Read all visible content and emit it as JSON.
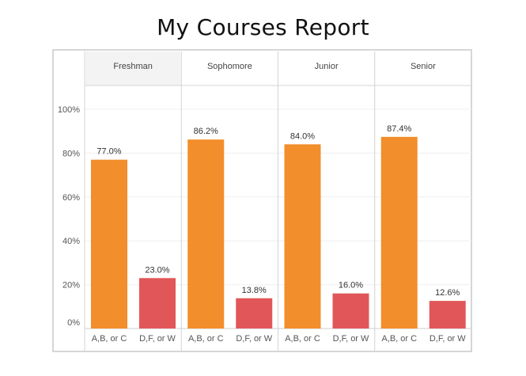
{
  "chart_data": {
    "type": "bar",
    "title": "My Courses Report",
    "panels": [
      {
        "name": "Freshman",
        "values": [
          77.0,
          23.0
        ],
        "labels": [
          "77.0%",
          "23.0%"
        ]
      },
      {
        "name": "Sophomore",
        "values": [
          86.2,
          13.8
        ],
        "labels": [
          "86.2%",
          "13.8%"
        ]
      },
      {
        "name": "Junior",
        "values": [
          84.0,
          16.0
        ],
        "labels": [
          "84.0%",
          "16.0%"
        ]
      },
      {
        "name": "Senior",
        "values": [
          87.4,
          12.6
        ],
        "labels": [
          "87.4%",
          "12.6%"
        ]
      }
    ],
    "categories": [
      "A,B, or C",
      "D,F, or W"
    ],
    "colors": [
      "#f28e2b",
      "#e15759"
    ],
    "yticks": [
      0,
      20,
      40,
      60,
      80,
      100
    ],
    "ytick_labels": [
      "0%",
      "20%",
      "40%",
      "60%",
      "80%",
      "100%"
    ],
    "ylim": [
      0,
      100
    ],
    "grid": true,
    "selected_panel": "Freshman"
  }
}
